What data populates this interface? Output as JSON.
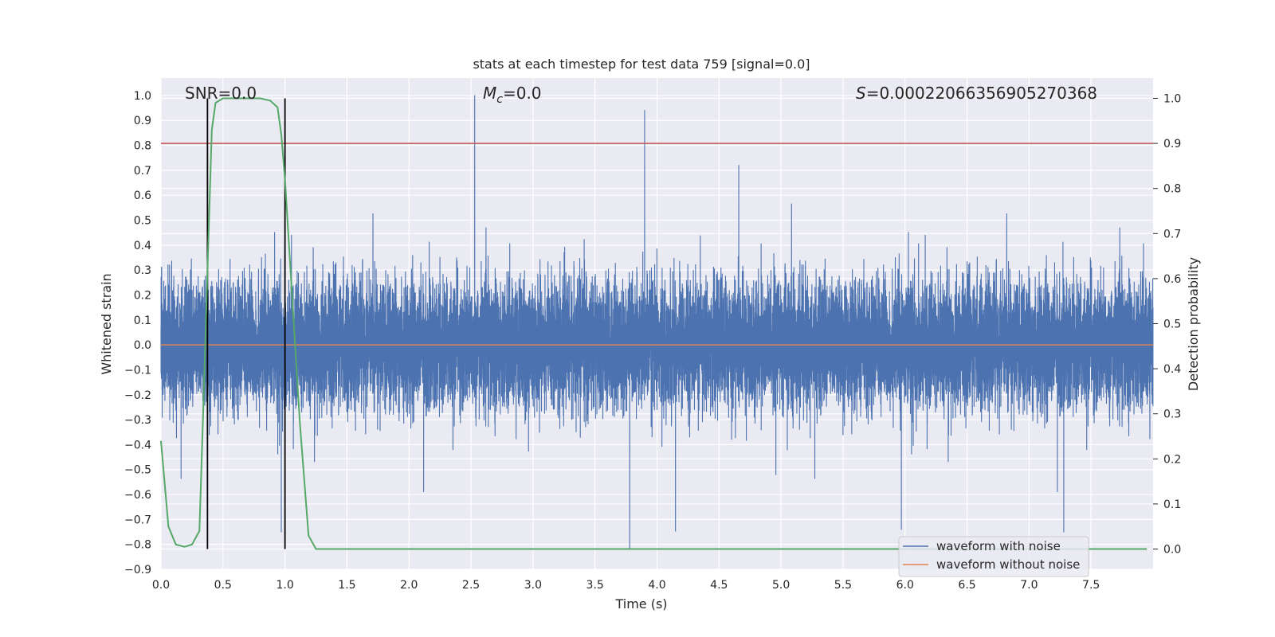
{
  "chart_data": {
    "type": "line",
    "title": "stats at each timestep for test data 759 [signal=0.0]",
    "xlabel": "Time (s)",
    "ylabel": "Whitened strain",
    "y2label": "Detection probability",
    "xlim": [
      0.0,
      8.0
    ],
    "ylim": [
      -0.9,
      1.07
    ],
    "y2lim": [
      -0.045,
      1.045
    ],
    "x_ticks": [
      "0.0",
      "0.5",
      "1.0",
      "1.5",
      "2.0",
      "2.5",
      "3.0",
      "3.5",
      "4.0",
      "4.5",
      "5.0",
      "5.5",
      "6.0",
      "6.5",
      "7.0",
      "7.5"
    ],
    "y_ticks": [
      "-0.9",
      "-0.8",
      "-0.7",
      "-0.6",
      "-0.5",
      "-0.4",
      "-0.3",
      "-0.2",
      "-0.1",
      "0.0",
      "0.1",
      "0.2",
      "0.3",
      "0.4",
      "0.5",
      "0.6",
      "0.7",
      "0.8",
      "0.9",
      "1.0"
    ],
    "y2_ticks": [
      "0.0",
      "0.1",
      "0.2",
      "0.3",
      "0.4",
      "0.5",
      "0.6",
      "0.7",
      "0.8",
      "0.9",
      "1.0"
    ],
    "grid": true,
    "annotations": {
      "snr": "SNR=0.0",
      "mc_symbol": "M",
      "mc_sub": "c",
      "mc_value": "=0.0",
      "s_symbol": "S",
      "s_value": "=0.00022066356905270368"
    },
    "threshold": 0.9,
    "vertical_lines_x": [
      0.375,
      1.0
    ],
    "noise_series": {
      "name": "waveform with noise",
      "color": "#4c72b0",
      "sample_rate_hz": 2048,
      "core_amplitude": 0.27,
      "notable_peaks": [
        {
          "x": 2.53,
          "y": 1.0
        },
        {
          "x": 3.9,
          "y": 0.94
        },
        {
          "x": 3.78,
          "y": -0.82
        },
        {
          "x": 0.97,
          "y": -0.75
        },
        {
          "x": 5.97,
          "y": -0.74
        },
        {
          "x": 7.28,
          "y": -0.75
        }
      ]
    },
    "clean_series": {
      "name": "waveform without noise",
      "color": "#dd8452",
      "value": 0.0
    },
    "probability_series": {
      "name": "detection probability",
      "color": "#55a868",
      "x": [
        0.0,
        0.06,
        0.12,
        0.19,
        0.25,
        0.31,
        0.34,
        0.375,
        0.41,
        0.44,
        0.5,
        0.6,
        0.8,
        0.88,
        0.94,
        0.97,
        1.0,
        1.06,
        1.12,
        1.19,
        1.25,
        1.31,
        2.0,
        3.0,
        4.0,
        5.0,
        6.0,
        7.0,
        7.95
      ],
      "y": [
        0.24,
        0.05,
        0.01,
        0.005,
        0.01,
        0.04,
        0.3,
        0.62,
        0.93,
        0.99,
        1.0,
        1.0,
        1.0,
        0.995,
        0.98,
        0.92,
        0.82,
        0.55,
        0.28,
        0.03,
        0.0,
        0.0,
        0.0,
        0.0,
        0.0,
        0.0,
        0.0,
        0.0,
        0.0
      ]
    },
    "legend": {
      "position": "lower-right",
      "entries": [
        {
          "label": "waveform with noise",
          "color": "#4c72b0"
        },
        {
          "label": "waveform without noise",
          "color": "#dd8452"
        }
      ]
    },
    "colors": {
      "background": "#eaeaf2",
      "grid": "#ffffff",
      "threshold": "#c44e52",
      "vertical": "#000000"
    }
  }
}
